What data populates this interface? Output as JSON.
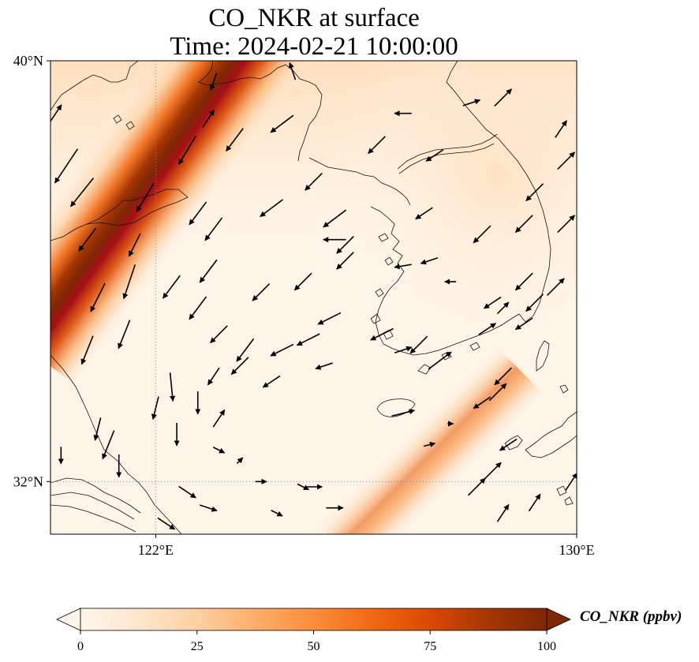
{
  "chart_data": {
    "type": "heatmap",
    "title": "CO_NKR at surface",
    "subtitle": "Time: 2024-02-21 10:00:00",
    "map": {
      "lon_range": [
        120,
        130
      ],
      "lat_range": [
        31,
        40
      ],
      "x_ticks": [
        {
          "value": 122,
          "label": "122°E"
        },
        {
          "value": 130,
          "label": "130°E"
        }
      ],
      "y_ticks": [
        {
          "value": 40,
          "label": "40°N"
        },
        {
          "value": 32,
          "label": "32°N"
        }
      ],
      "gridlines": [
        {
          "lon": 122
        },
        {
          "lat": 32
        }
      ],
      "plume_axis": [
        [
          120.0,
          35.3
        ],
        [
          123.4,
          40.0
        ]
      ],
      "secondary_plume": [
        [
          126.8,
          32.0
        ],
        [
          125.8,
          31.0
        ]
      ]
    },
    "colorbar": {
      "label": "CO_NKR (ppbv)",
      "min": 0,
      "max": 100,
      "ticks": [
        0,
        25,
        50,
        75,
        100
      ],
      "extend": "both",
      "colormap": [
        "#fff5eb",
        "#fee6ce",
        "#fdd0a2",
        "#fdae6b",
        "#fd8d3c",
        "#f16913",
        "#d94801",
        "#a63603",
        "#7f2704"
      ]
    },
    "wind_vectors": [
      [
        120.1,
        39.0,
        0.2,
        0.3
      ],
      [
        120.3,
        38.0,
        -0.4,
        -0.6
      ],
      [
        120.6,
        37.5,
        -0.4,
        -0.5
      ],
      [
        120.7,
        36.6,
        -0.3,
        -0.4
      ],
      [
        120.9,
        35.5,
        -0.25,
        -0.5
      ],
      [
        120.7,
        34.5,
        -0.2,
        -0.5
      ],
      [
        120.9,
        33.0,
        -0.1,
        -0.4
      ],
      [
        121.1,
        32.7,
        -0.2,
        -0.5
      ],
      [
        121.3,
        32.3,
        0.0,
        -0.4
      ],
      [
        120.2,
        32.5,
        0.0,
        -0.3
      ],
      [
        120.3,
        30.7,
        0.2,
        0.2
      ],
      [
        121.4,
        34.8,
        -0.2,
        -0.5
      ],
      [
        121.5,
        35.8,
        -0.2,
        -0.6
      ],
      [
        121.6,
        36.5,
        -0.2,
        -0.4
      ],
      [
        121.8,
        37.4,
        -0.3,
        -0.5
      ],
      [
        122.6,
        38.3,
        -0.3,
        -0.5
      ],
      [
        122.0,
        33.4,
        -0.1,
        -0.4
      ],
      [
        122.4,
        32.9,
        0.0,
        -0.4
      ],
      [
        122.3,
        33.8,
        0.05,
        -0.5
      ],
      [
        122.3,
        35.7,
        -0.3,
        -0.4
      ],
      [
        122.8,
        35.3,
        -0.3,
        -0.4
      ],
      [
        123.0,
        36.0,
        -0.3,
        -0.4
      ],
      [
        123.1,
        36.8,
        -0.3,
        -0.4
      ],
      [
        123.5,
        38.5,
        -0.3,
        -0.4
      ],
      [
        123.0,
        38.9,
        0.2,
        0.3
      ],
      [
        123.1,
        39.6,
        -0.1,
        -0.3
      ],
      [
        122.8,
        37.1,
        -0.3,
        -0.4
      ],
      [
        122.8,
        33.5,
        0.0,
        -0.4
      ],
      [
        123.2,
        33.2,
        0.2,
        0.3
      ],
      [
        123.7,
        34.5,
        -0.3,
        -0.4
      ],
      [
        123.2,
        34.8,
        -0.3,
        -0.3
      ],
      [
        123.1,
        34.0,
        -0.2,
        -0.3
      ],
      [
        122.6,
        31.8,
        0.3,
        -0.2
      ],
      [
        122.2,
        31.2,
        0.3,
        -0.2
      ],
      [
        123.0,
        31.5,
        0.3,
        -0.1
      ],
      [
        124.2,
        37.2,
        -0.4,
        -0.3
      ],
      [
        124.4,
        38.8,
        -0.4,
        -0.3
      ],
      [
        124.6,
        39.8,
        -0.1,
        0.3
      ],
      [
        125.0,
        37.7,
        -0.3,
        -0.3
      ],
      [
        125.4,
        37.0,
        -0.4,
        -0.3
      ],
      [
        125.6,
        36.2,
        -0.3,
        -0.3
      ],
      [
        125.2,
        34.2,
        -0.3,
        -0.1
      ],
      [
        124.9,
        34.7,
        -0.4,
        -0.2
      ],
      [
        124.0,
        35.6,
        -0.3,
        -0.3
      ],
      [
        124.8,
        35.8,
        -0.3,
        -0.3
      ],
      [
        124.2,
        33.9,
        -0.3,
        -0.2
      ],
      [
        124.4,
        34.5,
        -0.4,
        -0.2
      ],
      [
        123.6,
        34.2,
        -0.3,
        -0.3
      ],
      [
        123.2,
        32.6,
        0.2,
        -0.1
      ],
      [
        123.6,
        32.4,
        0.1,
        0.1
      ],
      [
        124.0,
        32.0,
        0.2,
        0.0
      ],
      [
        124.8,
        31.9,
        0.2,
        -0.1
      ],
      [
        124.3,
        31.4,
        0.2,
        -0.1
      ],
      [
        125.0,
        31.9,
        0.3,
        0.0
      ],
      [
        125.4,
        31.5,
        0.3,
        0.0
      ],
      [
        125.8,
        30.9,
        -0.3,
        -0.1
      ],
      [
        127.2,
        32.7,
        0.2,
        0.05
      ],
      [
        127.6,
        33.1,
        0.1,
        0.0
      ],
      [
        126.7,
        39.0,
        -0.3,
        0.0
      ],
      [
        126.2,
        38.4,
        -0.3,
        -0.3
      ],
      [
        127.1,
        38.9,
        0.0,
        0.0
      ],
      [
        127.6,
        38.2,
        0.0,
        0.0
      ],
      [
        128.0,
        39.2,
        0.3,
        0.1
      ],
      [
        128.6,
        39.3,
        0.3,
        0.3
      ],
      [
        127.0,
        37.7,
        0.0,
        0.0
      ],
      [
        127.1,
        37.1,
        -0.3,
        -0.2
      ],
      [
        127.3,
        38.2,
        -0.3,
        -0.2
      ],
      [
        127.8,
        37.1,
        0.0,
        0.0
      ],
      [
        128.1,
        37.8,
        0.0,
        0.0
      ],
      [
        128.2,
        36.7,
        -0.3,
        -0.3
      ],
      [
        128.6,
        38.2,
        0.0,
        0.0
      ],
      [
        129.2,
        37.5,
        -0.3,
        -0.3
      ],
      [
        129.0,
        36.9,
        -0.3,
        -0.3
      ],
      [
        129.0,
        35.8,
        -0.3,
        -0.3
      ],
      [
        129.0,
        35.0,
        -0.3,
        -0.2
      ],
      [
        129.6,
        37.3,
        0.0,
        0.0
      ],
      [
        129.7,
        38.7,
        0.2,
        0.3
      ],
      [
        129.8,
        38.1,
        0.3,
        0.3
      ],
      [
        129.8,
        36.9,
        0.3,
        0.3
      ],
      [
        129.6,
        35.7,
        0.3,
        0.3
      ],
      [
        128.6,
        34.0,
        -0.3,
        -0.3
      ],
      [
        128.2,
        33.5,
        -0.3,
        -0.2
      ],
      [
        128.7,
        32.7,
        -0.3,
        -0.2
      ],
      [
        128.4,
        32.2,
        0.3,
        0.3
      ],
      [
        128.1,
        31.9,
        0.3,
        0.3
      ],
      [
        128.6,
        31.4,
        0.2,
        0.3
      ],
      [
        129.2,
        31.6,
        0.2,
        0.3
      ],
      [
        129.9,
        32.0,
        0.2,
        0.3
      ],
      [
        127.4,
        34.3,
        0.4,
        0.3
      ],
      [
        126.7,
        34.5,
        0.3,
        0.1
      ],
      [
        126.7,
        33.3,
        0.4,
        0.1
      ],
      [
        127.0,
        34.6,
        -0.3,
        -0.3
      ],
      [
        126.3,
        34.8,
        -0.4,
        -0.2
      ],
      [
        125.6,
        36.5,
        -0.3,
        -0.3
      ],
      [
        125.3,
        35.1,
        -0.4,
        -0.2
      ],
      [
        125.4,
        36.6,
        -0.4,
        0.0
      ],
      [
        126.7,
        36.1,
        -0.3,
        -0.05
      ],
      [
        127.2,
        36.2,
        -0.3,
        -0.1
      ],
      [
        127.6,
        35.8,
        -0.2,
        0.0
      ],
      [
        128.4,
        35.4,
        -0.3,
        -0.2
      ],
      [
        127.9,
        35.1,
        0.0,
        0.0
      ],
      [
        127.2,
        35.4,
        0.0,
        0.0
      ],
      [
        128.3,
        34.9,
        0.3,
        0.2
      ],
      [
        128.6,
        35.3,
        0.2,
        0.2
      ],
      [
        129.2,
        35.4,
        -0.3,
        -0.3
      ],
      [
        128.5,
        33.7,
        0.3,
        0.3
      ]
    ]
  }
}
